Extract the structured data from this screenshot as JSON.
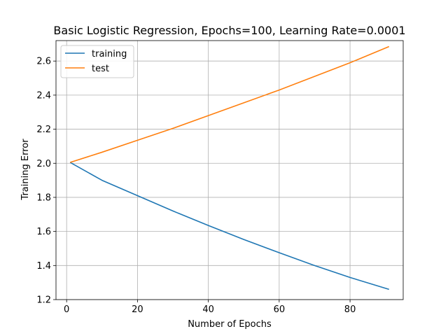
{
  "chart_data": {
    "type": "line",
    "title": "Basic Logistic Regression, Epochs=100, Learning Rate=0.0001",
    "xlabel": "Number of Epochs",
    "ylabel": "Training Error",
    "xlim": [
      -3,
      95
    ],
    "ylim": [
      1.2,
      2.72
    ],
    "xticks": [
      0,
      20,
      40,
      60,
      80
    ],
    "yticks": [
      1.2,
      1.4,
      1.6,
      1.8,
      2.0,
      2.2,
      2.4,
      2.6
    ],
    "grid": true,
    "legend_position": "top-left",
    "series": [
      {
        "name": "training",
        "color": "#1f77b4",
        "x": [
          1,
          10,
          20,
          30,
          40,
          50,
          60,
          70,
          80,
          91
        ],
        "values": [
          2.005,
          1.9,
          1.81,
          1.72,
          1.635,
          1.553,
          1.475,
          1.4,
          1.33,
          1.26
        ]
      },
      {
        "name": "test",
        "color": "#ff7f0e",
        "x": [
          1,
          10,
          20,
          30,
          40,
          50,
          60,
          70,
          80,
          91
        ],
        "values": [
          2.005,
          2.065,
          2.135,
          2.205,
          2.28,
          2.355,
          2.43,
          2.51,
          2.59,
          2.685
        ]
      }
    ]
  }
}
